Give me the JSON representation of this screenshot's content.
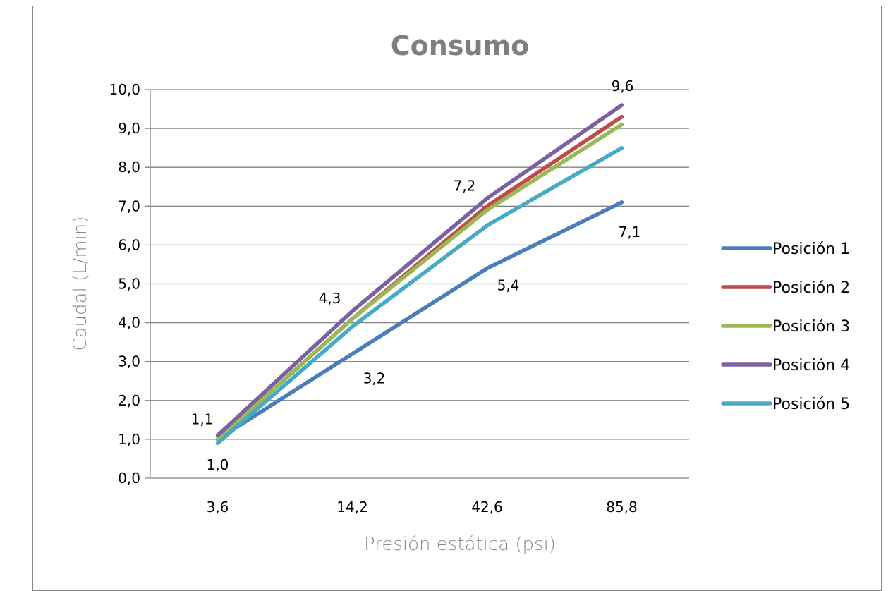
{
  "chart_data": {
    "type": "line",
    "title": "Consumo",
    "xlabel": "Presión estática (psi)",
    "ylabel": "Caudal (L/min)",
    "categories": [
      "3,6",
      "14,2",
      "42,6",
      "85,8"
    ],
    "ylim": [
      0,
      10
    ],
    "yticks": [
      "0,0",
      "1,0",
      "2,0",
      "3,0",
      "4,0",
      "5,0",
      "6,0",
      "7,0",
      "8,0",
      "9,0",
      "10,0"
    ],
    "grid": true,
    "legend_position": "right",
    "series": [
      {
        "name": "Posición 1",
        "color": "#4a7ebb",
        "values": [
          1.0,
          3.2,
          5.4,
          7.1
        ]
      },
      {
        "name": "Posición 2",
        "color": "#be4b48",
        "values": [
          1.0,
          4.1,
          7.0,
          9.3
        ]
      },
      {
        "name": "Posición 3",
        "color": "#98b954",
        "values": [
          1.0,
          4.1,
          6.9,
          9.1
        ]
      },
      {
        "name": "Posición 4",
        "color": "#7d60a0",
        "values": [
          1.1,
          4.3,
          7.2,
          9.6
        ]
      },
      {
        "name": "Posición 5",
        "color": "#46aac5",
        "values": [
          0.9,
          3.9,
          6.5,
          8.5
        ]
      }
    ],
    "data_labels": [
      {
        "series": 0,
        "point": 0,
        "text": "1,0"
      },
      {
        "series": 0,
        "point": 1,
        "text": "3,2"
      },
      {
        "series": 0,
        "point": 2,
        "text": "5,4"
      },
      {
        "series": 0,
        "point": 3,
        "text": "7,1"
      },
      {
        "series": 3,
        "point": 0,
        "text": "1,1"
      },
      {
        "series": 3,
        "point": 1,
        "text": "4,3"
      },
      {
        "series": 3,
        "point": 2,
        "text": "7,2"
      },
      {
        "series": 3,
        "point": 3,
        "text": "9,6"
      }
    ]
  }
}
